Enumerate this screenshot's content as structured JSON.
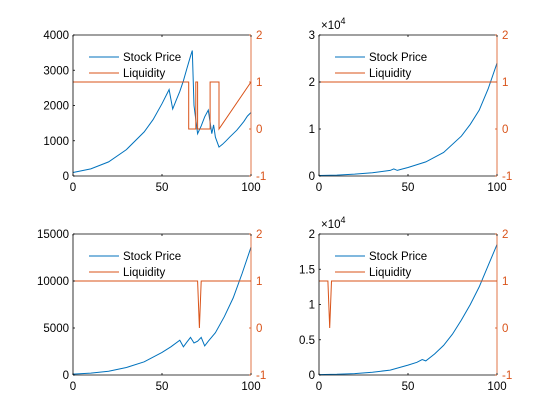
{
  "colors": {
    "price": "#0072bd",
    "liquidity": "#d95319",
    "axis": "#000000"
  },
  "chart_data": [
    {
      "type": "line",
      "title": "",
      "xlabel": "",
      "ylabel": "",
      "xlim": [
        0,
        100
      ],
      "ylim_left": [
        0,
        4000
      ],
      "ylim_right": [
        -1,
        2
      ],
      "exponent_label": null,
      "xticks": [
        "0",
        "50",
        "100"
      ],
      "yticks_left": [
        {
          "v": 0,
          "label": "0"
        },
        {
          "v": 1000,
          "label": "1000"
        },
        {
          "v": 2000,
          "label": "2000"
        },
        {
          "v": 3000,
          "label": "3000"
        },
        {
          "v": 4000,
          "label": "4000"
        }
      ],
      "yticks_right": [
        {
          "v": -1,
          "label": "-1"
        },
        {
          "v": 0,
          "label": "0"
        },
        {
          "v": 1,
          "label": "1"
        },
        {
          "v": 2,
          "label": "2"
        }
      ],
      "legend": [
        "Stock Price",
        "Liquidity"
      ],
      "legend_position": "top-left",
      "series": [
        {
          "name": "Stock Price",
          "axis": "left",
          "x": [
            0,
            10,
            20,
            30,
            40,
            45,
            50,
            54,
            56,
            58,
            60,
            62,
            64,
            66,
            67,
            68,
            70,
            72,
            74,
            76,
            78,
            79,
            80,
            82,
            84,
            86,
            88,
            90,
            92,
            94,
            96,
            98,
            100
          ],
          "y": [
            100,
            200,
            400,
            750,
            1250,
            1600,
            2050,
            2450,
            1900,
            2150,
            2400,
            2700,
            3050,
            3400,
            3560,
            2000,
            1200,
            1420,
            1680,
            1870,
            1200,
            1450,
            1100,
            820,
            900,
            1000,
            1100,
            1200,
            1300,
            1420,
            1550,
            1700,
            1800
          ]
        },
        {
          "name": "Liquidity",
          "axis": "right",
          "x": [
            0,
            65,
            65,
            69,
            69,
            70,
            70,
            77,
            77,
            82,
            82,
            100
          ],
          "y": [
            1,
            1,
            0,
            0,
            1,
            1,
            0,
            0,
            1,
            1,
            0,
            1
          ]
        }
      ]
    },
    {
      "type": "line",
      "title": "",
      "xlabel": "",
      "ylabel": "",
      "xlim": [
        0,
        100
      ],
      "ylim_left": [
        0,
        3
      ],
      "ylim_right": [
        -1,
        2
      ],
      "exponent_label": "×10^4",
      "xticks": [
        "0",
        "50",
        "100"
      ],
      "yticks_left": [
        {
          "v": 0,
          "label": "0"
        },
        {
          "v": 1,
          "label": "1"
        },
        {
          "v": 2,
          "label": "2"
        },
        {
          "v": 3,
          "label": "3"
        }
      ],
      "yticks_right": [
        {
          "v": -1,
          "label": "-1"
        },
        {
          "v": 0,
          "label": "0"
        },
        {
          "v": 1,
          "label": "1"
        },
        {
          "v": 2,
          "label": "2"
        }
      ],
      "legend": [
        "Stock Price",
        "Liquidity"
      ],
      "legend_position": "top-left",
      "series": [
        {
          "name": "Stock Price",
          "axis": "left",
          "x": [
            0,
            10,
            20,
            30,
            40,
            42,
            44,
            46,
            50,
            60,
            70,
            80,
            85,
            90,
            95,
            100
          ],
          "y": [
            0.01,
            0.02,
            0.04,
            0.07,
            0.12,
            0.15,
            0.12,
            0.14,
            0.18,
            0.3,
            0.5,
            0.85,
            1.1,
            1.4,
            1.85,
            2.4
          ]
        },
        {
          "name": "Liquidity",
          "axis": "right",
          "x": [
            0,
            100
          ],
          "y": [
            1,
            1
          ]
        }
      ]
    },
    {
      "type": "line",
      "title": "",
      "xlabel": "",
      "ylabel": "",
      "xlim": [
        0,
        100
      ],
      "ylim_left": [
        0,
        15000
      ],
      "ylim_right": [
        -1,
        2
      ],
      "exponent_label": null,
      "xticks": [
        "0",
        "50",
        "100"
      ],
      "yticks_left": [
        {
          "v": 0,
          "label": "0"
        },
        {
          "v": 5000,
          "label": "5000"
        },
        {
          "v": 10000,
          "label": "10000"
        },
        {
          "v": 15000,
          "label": "15000"
        }
      ],
      "yticks_right": [
        {
          "v": -1,
          "label": "-1"
        },
        {
          "v": 0,
          "label": "0"
        },
        {
          "v": 1,
          "label": "1"
        },
        {
          "v": 2,
          "label": "2"
        }
      ],
      "legend": [
        "Stock Price",
        "Liquidity"
      ],
      "legend_position": "top-left",
      "series": [
        {
          "name": "Stock Price",
          "axis": "left",
          "x": [
            0,
            10,
            20,
            30,
            40,
            50,
            55,
            60,
            62,
            64,
            66,
            68,
            70,
            72,
            74,
            76,
            80,
            85,
            90,
            95,
            100
          ],
          "y": [
            100,
            200,
            400,
            800,
            1400,
            2400,
            3000,
            3700,
            3000,
            3500,
            4000,
            3400,
            3600,
            4000,
            3100,
            3600,
            4500,
            6200,
            8200,
            10800,
            13600
          ]
        },
        {
          "name": "Liquidity",
          "axis": "right",
          "x": [
            0,
            70,
            71,
            72,
            100
          ],
          "y": [
            1,
            1,
            0,
            1,
            1
          ]
        }
      ]
    },
    {
      "type": "line",
      "title": "",
      "xlabel": "",
      "ylabel": "",
      "xlim": [
        0,
        100
      ],
      "ylim_left": [
        0,
        2
      ],
      "ylim_right": [
        -1,
        2
      ],
      "exponent_label": "×10^4",
      "xticks": [
        "0",
        "50",
        "100"
      ],
      "yticks_left": [
        {
          "v": 0,
          "label": "0"
        },
        {
          "v": 0.5,
          "label": "0.5"
        },
        {
          "v": 1,
          "label": "1"
        },
        {
          "v": 1.5,
          "label": "1.5"
        },
        {
          "v": 2,
          "label": "2"
        }
      ],
      "yticks_right": [
        {
          "v": -1,
          "label": "-1"
        },
        {
          "v": 0,
          "label": "0"
        },
        {
          "v": 1,
          "label": "1"
        },
        {
          "v": 2,
          "label": "2"
        }
      ],
      "legend": [
        "Stock Price",
        "Liquidity"
      ],
      "legend_position": "top-left",
      "series": [
        {
          "name": "Stock Price",
          "axis": "left",
          "x": [
            0,
            10,
            20,
            30,
            40,
            50,
            55,
            58,
            60,
            65,
            70,
            75,
            80,
            85,
            90,
            95,
            100
          ],
          "y": [
            0.005,
            0.01,
            0.02,
            0.04,
            0.07,
            0.14,
            0.18,
            0.22,
            0.2,
            0.3,
            0.42,
            0.58,
            0.78,
            1.0,
            1.25,
            1.55,
            1.85
          ]
        },
        {
          "name": "Liquidity",
          "axis": "right",
          "x": [
            0,
            5,
            6,
            7,
            100
          ],
          "y": [
            1,
            1,
            0,
            1,
            1
          ]
        }
      ]
    }
  ]
}
